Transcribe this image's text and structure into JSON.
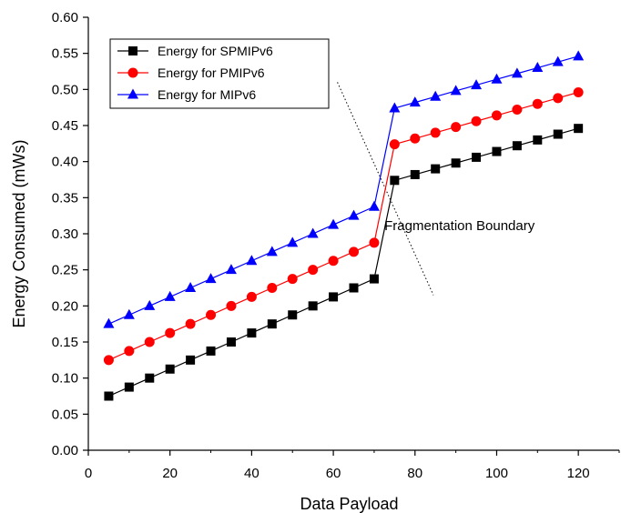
{
  "chart_data": {
    "type": "line",
    "xlabel": "Data Payload",
    "ylabel": "Energy Consumed (mWs)",
    "xlim": [
      0,
      130
    ],
    "ylim": [
      0,
      0.6
    ],
    "xticks": [
      0,
      20,
      40,
      60,
      80,
      100,
      120
    ],
    "yticks": [
      "0.00",
      "0.05",
      "0.10",
      "0.15",
      "0.20",
      "0.25",
      "0.30",
      "0.35",
      "0.40",
      "0.45",
      "0.50",
      "0.55",
      "0.60"
    ],
    "grid": false,
    "legend_position": "top-left",
    "x": [
      5,
      10,
      15,
      20,
      25,
      30,
      35,
      40,
      45,
      50,
      55,
      60,
      65,
      70,
      75,
      80,
      85,
      90,
      95,
      100,
      105,
      110,
      115,
      120
    ],
    "series": [
      {
        "name": "Energy for SPMIPv6",
        "color": "#000000",
        "marker": "square",
        "values": [
          0.075,
          0.0875,
          0.1,
          0.1125,
          0.125,
          0.1375,
          0.15,
          0.1625,
          0.175,
          0.1875,
          0.2,
          0.2125,
          0.225,
          0.2375,
          0.374,
          0.382,
          0.39,
          0.398,
          0.406,
          0.414,
          0.422,
          0.43,
          0.438,
          0.446
        ]
      },
      {
        "name": "Energy for PMIPv6",
        "color": "#ff0000",
        "marker": "circle",
        "values": [
          0.125,
          0.1375,
          0.15,
          0.1625,
          0.175,
          0.1875,
          0.2,
          0.2125,
          0.225,
          0.2375,
          0.25,
          0.2625,
          0.275,
          0.2875,
          0.424,
          0.432,
          0.44,
          0.448,
          0.456,
          0.464,
          0.472,
          0.48,
          0.488,
          0.496
        ]
      },
      {
        "name": "Energy for MIPv6",
        "color": "#0000ff",
        "marker": "triangle",
        "values": [
          0.175,
          0.1875,
          0.2,
          0.2125,
          0.225,
          0.2375,
          0.25,
          0.2625,
          0.275,
          0.2875,
          0.3,
          0.3125,
          0.325,
          0.3375,
          0.474,
          0.482,
          0.49,
          0.498,
          0.506,
          0.514,
          0.522,
          0.53,
          0.538,
          0.546
        ]
      }
    ],
    "annotation": {
      "text": "Fragmentation Boundary",
      "line_from": [
        61,
        0.51
      ],
      "line_to": [
        84.5,
        0.215
      ],
      "label_at": [
        72.5,
        0.305
      ]
    }
  }
}
